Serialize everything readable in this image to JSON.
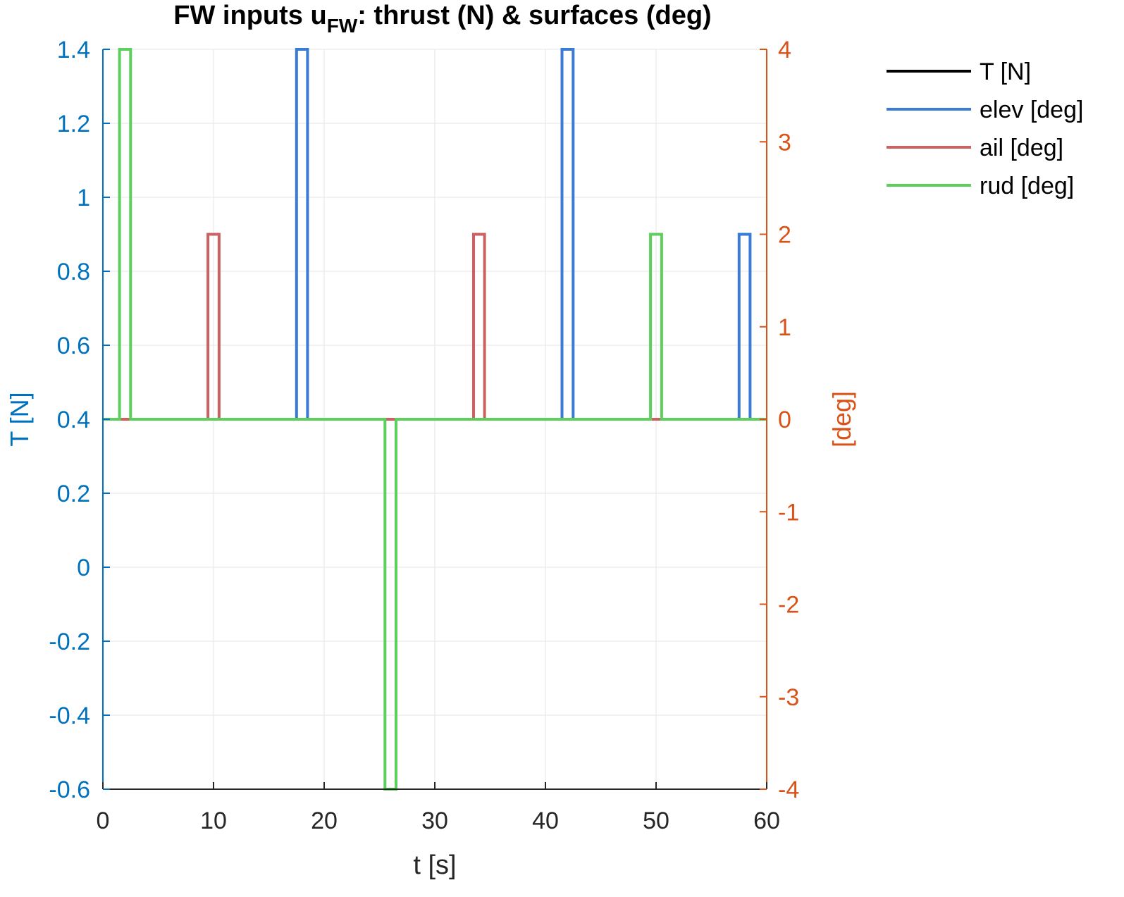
{
  "chart_data": {
    "type": "line",
    "title": "FW inputs u",
    "title_subscript": "FW",
    "title_rest": ": thrust (N) & surfaces (deg)",
    "xlabel": "t [s]",
    "ylabel_left": "T [N]",
    "ylabel_right": "[deg]",
    "xlim": [
      0,
      60
    ],
    "ylim_left": [
      -0.6,
      1.4
    ],
    "ylim_right": [
      -4,
      4
    ],
    "xticks": [
      0,
      10,
      20,
      30,
      40,
      50,
      60
    ],
    "xtick_labels": [
      "0",
      "10",
      "20",
      "30",
      "40",
      "50",
      "60"
    ],
    "yticks_left": [
      1.4,
      1.2,
      1,
      0.8,
      0.6,
      0.4,
      0.2,
      0,
      -0.2,
      -0.4,
      -0.6
    ],
    "ytick_labels_left": [
      "1.4",
      "1.2",
      "1",
      "0.8",
      "0.6",
      "0.4",
      "0.2",
      "0",
      "-0.2",
      "-0.4",
      "-0.6"
    ],
    "yticks_right": [
      4,
      3,
      2,
      1,
      0,
      -1,
      -2,
      -3,
      -4
    ],
    "ytick_labels_right": [
      "4",
      "3",
      "2",
      "1",
      "0",
      "-1",
      "-2",
      "-3",
      "-4"
    ],
    "grid": true,
    "legend_position": "outside-top-right",
    "series": [
      {
        "name": "T [N]",
        "axis": "left",
        "color": "#000000",
        "x": [
          0,
          60
        ],
        "y": [
          0.4,
          0.4
        ]
      },
      {
        "name": "elev [deg]",
        "axis": "right",
        "color": "#3A7BD5",
        "x": [
          0,
          17.5,
          17.5,
          18.5,
          18.5,
          41.5,
          41.5,
          42.5,
          42.5,
          57.5,
          57.5,
          58.5,
          58.5,
          60
        ],
        "y": [
          0,
          0,
          4,
          4,
          0,
          0,
          4,
          4,
          0,
          0,
          2,
          2,
          0,
          0
        ]
      },
      {
        "name": "ail [deg]",
        "axis": "right",
        "color": "#CD6060",
        "x": [
          0,
          9.5,
          9.5,
          10.5,
          10.5,
          33.5,
          33.5,
          34.5,
          34.5,
          60
        ],
        "y": [
          0,
          0,
          2,
          2,
          0,
          0,
          2,
          2,
          0,
          0
        ]
      },
      {
        "name": "rud [deg]",
        "axis": "right",
        "color": "#5CCF5C",
        "x": [
          0,
          1.5,
          1.5,
          2.5,
          2.5,
          25.5,
          25.5,
          26.5,
          26.5,
          49.5,
          49.5,
          50.5,
          50.5,
          60
        ],
        "y": [
          0,
          0,
          4,
          4,
          0,
          0,
          -4,
          -4,
          0,
          0,
          2,
          2,
          0,
          0
        ]
      }
    ]
  }
}
